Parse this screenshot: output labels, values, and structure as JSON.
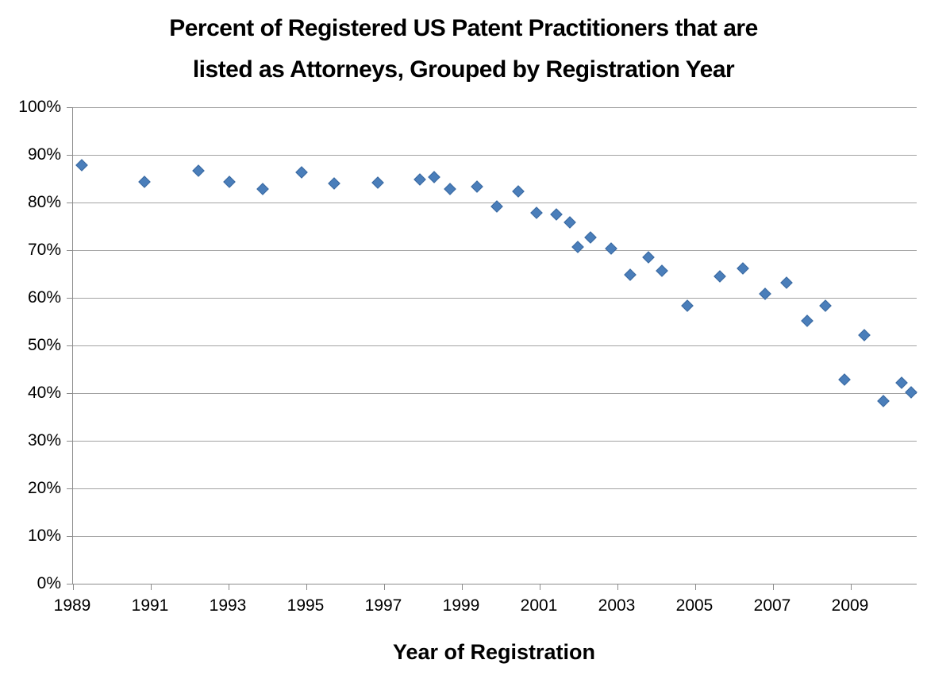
{
  "title": {
    "line1": "Percent of Registered US Patent Practitioners that are",
    "line2": "listed as Attorneys, Grouped by Registration Year"
  },
  "chart_data": {
    "type": "scatter",
    "title": "Percent of Registered US Patent Practitioners that are listed as Attorneys, Grouped by Registration Year",
    "xlabel": "Year of Registration",
    "ylabel": "",
    "grid": "horizontal",
    "legend": "none",
    "marker_shape": "diamond",
    "colors": {
      "marker_fill": "#4a7eba",
      "marker_border": "#3a69a0",
      "gridline": "#a3a3a3",
      "axis": "#8c8c8c",
      "text": "#000000"
    },
    "x_axis": {
      "min": 1989,
      "max": 2010.7,
      "tick_years": [
        1989,
        1991,
        1993,
        1995,
        1997,
        1999,
        2001,
        2003,
        2005,
        2007,
        2009
      ],
      "tick_labels": [
        "1989",
        "1991",
        "1993",
        "1995",
        "1997",
        "1999",
        "2001",
        "2003",
        "2005",
        "2007",
        "2009"
      ]
    },
    "y_axis": {
      "min": 0,
      "max": 100,
      "tick_values": [
        0,
        10,
        20,
        30,
        40,
        50,
        60,
        70,
        80,
        90,
        100
      ],
      "tick_labels": [
        "0%",
        "10%",
        "20%",
        "30%",
        "40%",
        "50%",
        "60%",
        "70%",
        "80%",
        "90%",
        "100%"
      ]
    },
    "points": [
      {
        "x": 1989.23,
        "y": 87.8
      },
      {
        "x": 1990.84,
        "y": 84.4
      },
      {
        "x": 1992.22,
        "y": 86.6
      },
      {
        "x": 1993.03,
        "y": 84.4
      },
      {
        "x": 1993.87,
        "y": 82.9
      },
      {
        "x": 1994.88,
        "y": 86.4
      },
      {
        "x": 1995.71,
        "y": 84.0
      },
      {
        "x": 1996.84,
        "y": 84.2
      },
      {
        "x": 1997.92,
        "y": 84.9
      },
      {
        "x": 1998.29,
        "y": 85.3
      },
      {
        "x": 1998.69,
        "y": 82.9
      },
      {
        "x": 1999.39,
        "y": 83.4
      },
      {
        "x": 1999.9,
        "y": 79.1
      },
      {
        "x": 2000.45,
        "y": 82.3
      },
      {
        "x": 2000.92,
        "y": 77.8
      },
      {
        "x": 2001.42,
        "y": 77.5
      },
      {
        "x": 2001.77,
        "y": 75.8
      },
      {
        "x": 2001.98,
        "y": 70.6
      },
      {
        "x": 2002.31,
        "y": 72.6
      },
      {
        "x": 2002.83,
        "y": 70.4
      },
      {
        "x": 2003.32,
        "y": 64.9
      },
      {
        "x": 2003.79,
        "y": 68.5
      },
      {
        "x": 2004.14,
        "y": 65.7
      },
      {
        "x": 2004.8,
        "y": 58.4
      },
      {
        "x": 2005.63,
        "y": 64.5
      },
      {
        "x": 2006.22,
        "y": 66.1
      },
      {
        "x": 2006.8,
        "y": 60.9
      },
      {
        "x": 2007.34,
        "y": 63.1
      },
      {
        "x": 2007.88,
        "y": 55.2
      },
      {
        "x": 2008.35,
        "y": 58.3
      },
      {
        "x": 2008.84,
        "y": 42.8
      },
      {
        "x": 2009.34,
        "y": 52.1
      },
      {
        "x": 2009.83,
        "y": 38.4
      },
      {
        "x": 2010.31,
        "y": 42.2
      },
      {
        "x": 2010.56,
        "y": 40.2
      }
    ]
  }
}
